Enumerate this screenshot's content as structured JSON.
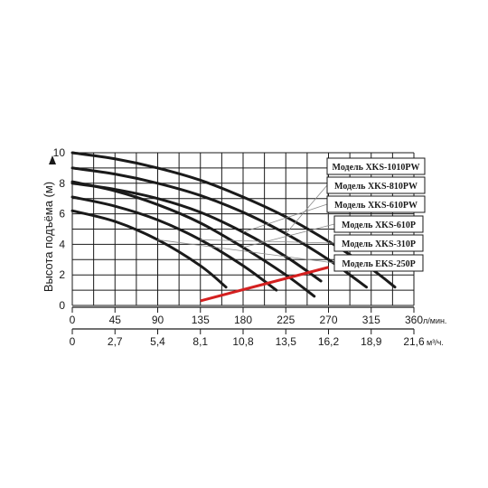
{
  "chart_data": {
    "type": "line",
    "ylabel": "Высота подъёма (м)",
    "x_unit_primary": "л/мин.",
    "x_unit_secondary": "м³/ч.",
    "xlim": [
      0,
      360
    ],
    "ylim": [
      0,
      10
    ],
    "x_ticks_primary": [
      "0",
      "45",
      "90",
      "135",
      "180",
      "225",
      "270",
      "315",
      "360"
    ],
    "x_ticks_secondary": [
      "0",
      "2,7",
      "5,4",
      "8,1",
      "10,8",
      "13,5",
      "16,2",
      "18,9",
      "21,6"
    ],
    "y_ticks": [
      "0",
      "2",
      "4",
      "6",
      "8",
      "10"
    ],
    "grid": true,
    "series": [
      {
        "name": "Модель XKS-1010PW",
        "x": [
          0,
          45,
          90,
          135,
          180,
          225,
          270,
          315,
          340
        ],
        "y": [
          10,
          9.6,
          9.0,
          8.2,
          7.1,
          5.8,
          4.2,
          2.4,
          1.2
        ]
      },
      {
        "name": "Модель XKS-810PW",
        "x": [
          0,
          45,
          90,
          135,
          180,
          225,
          270,
          310
        ],
        "y": [
          9.0,
          8.6,
          8.0,
          7.2,
          6.1,
          4.7,
          3.0,
          1.2
        ]
      },
      {
        "name": "Модель XKS-610PW",
        "x": [
          0,
          45,
          90,
          135,
          180,
          225,
          262
        ],
        "y": [
          8.0,
          7.6,
          7.0,
          6.1,
          4.8,
          3.2,
          1.6
        ]
      },
      {
        "name": "Модель XKS-610P",
        "x": [
          0,
          45,
          90,
          135,
          180,
          225,
          255
        ],
        "y": [
          8.1,
          7.5,
          6.6,
          5.4,
          3.8,
          2.0,
          0.6
        ]
      },
      {
        "name": "Модель XKS-310P",
        "x": [
          0,
          45,
          90,
          135,
          180,
          215
        ],
        "y": [
          7.1,
          6.5,
          5.6,
          4.3,
          2.6,
          1.0
        ]
      },
      {
        "name": "Модель EKS-250P",
        "x": [
          0,
          45,
          90,
          135,
          162
        ],
        "y": [
          6.2,
          5.5,
          4.3,
          2.6,
          1.2
        ]
      }
    ],
    "limit_line": {
      "color": "#d42020",
      "x": [
        135,
        270
      ],
      "y": [
        0.3,
        2.5
      ]
    },
    "colors": {
      "curve": "#1a1a1a",
      "grid": "#1a1a1a",
      "limit": "#d42020"
    }
  }
}
